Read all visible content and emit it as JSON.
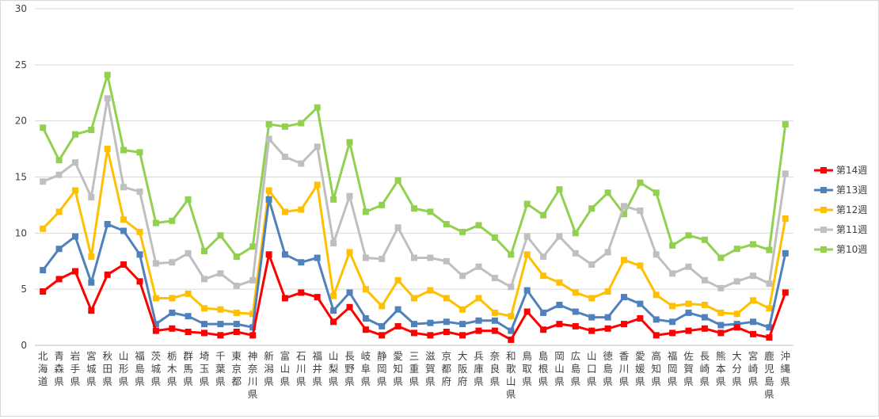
{
  "chart_data": {
    "type": "line",
    "title": "",
    "xlabel": "",
    "ylabel": "",
    "ylim": [
      0,
      30
    ],
    "yticks": [
      0,
      5,
      10,
      15,
      20,
      25,
      30
    ],
    "grid": true,
    "legend_position": "right",
    "categories": [
      "北海道",
      "青森県",
      "岩手県",
      "宮城県",
      "秋田県",
      "山形県",
      "福島県",
      "茨城県",
      "栃木県",
      "群馬県",
      "埼玉県",
      "千葉県",
      "東京都",
      "神奈川県",
      "新潟県",
      "富山県",
      "石川県",
      "福井県",
      "山梨県",
      "長野県",
      "岐阜県",
      "静岡県",
      "愛知県",
      "三重県",
      "滋賀県",
      "京都府",
      "大阪府",
      "兵庫県",
      "奈良県",
      "和歌山県",
      "鳥取県",
      "島根県",
      "岡山県",
      "広島県",
      "山口県",
      "徳島県",
      "香川県",
      "愛媛県",
      "高知県",
      "福岡県",
      "佐賀県",
      "長崎県",
      "熊本県",
      "大分県",
      "宮崎県",
      "鹿児島県",
      "沖縄県"
    ],
    "series": [
      {
        "name": "第10週",
        "color": "#92d050",
        "values": [
          19.4,
          16.5,
          18.8,
          19.2,
          24.1,
          17.4,
          17.2,
          10.9,
          11.1,
          13.0,
          8.4,
          9.8,
          7.9,
          8.8,
          19.7,
          19.5,
          19.8,
          21.2,
          13.0,
          18.1,
          11.9,
          12.5,
          14.7,
          12.2,
          11.9,
          10.8,
          10.1,
          10.7,
          9.6,
          8.1,
          12.6,
          11.6,
          13.9,
          10.0,
          12.2,
          13.6,
          11.7,
          14.5,
          13.6,
          8.9,
          9.8,
          9.4,
          7.8,
          8.6,
          9.0,
          8.5,
          19.7
        ]
      },
      {
        "name": "第11週",
        "color": "#bfbfbf",
        "values": [
          14.6,
          15.2,
          16.3,
          13.2,
          22.0,
          14.1,
          13.7,
          7.3,
          7.4,
          8.2,
          5.9,
          6.4,
          5.3,
          5.8,
          18.4,
          16.8,
          16.2,
          17.7,
          9.1,
          13.3,
          7.8,
          7.7,
          10.5,
          7.8,
          7.8,
          7.5,
          6.2,
          7.0,
          6.0,
          5.2,
          9.7,
          7.9,
          9.7,
          8.2,
          7.2,
          8.3,
          12.4,
          12.0,
          8.1,
          6.4,
          7.0,
          5.8,
          5.1,
          5.7,
          6.2,
          5.5,
          15.3
        ]
      },
      {
        "name": "第12週",
        "color": "#ffc000",
        "values": [
          10.4,
          11.9,
          13.8,
          7.9,
          17.5,
          11.2,
          10.1,
          4.2,
          4.2,
          4.6,
          3.3,
          3.2,
          2.9,
          2.8,
          13.8,
          11.9,
          12.1,
          14.3,
          4.4,
          8.3,
          5.0,
          3.5,
          5.8,
          4.2,
          4.9,
          4.2,
          3.2,
          4.2,
          2.9,
          2.6,
          8.1,
          6.2,
          5.6,
          4.7,
          4.2,
          4.8,
          7.6,
          7.1,
          4.5,
          3.5,
          3.7,
          3.6,
          2.9,
          2.8,
          4.0,
          3.3,
          11.3
        ]
      },
      {
        "name": "第13週",
        "color": "#4f81bd",
        "values": [
          6.7,
          8.6,
          9.7,
          5.6,
          10.8,
          10.2,
          8.1,
          1.9,
          2.9,
          2.6,
          1.9,
          1.9,
          1.9,
          1.6,
          13.0,
          8.1,
          7.4,
          7.8,
          3.1,
          4.7,
          2.4,
          1.7,
          3.2,
          1.9,
          2.0,
          2.1,
          1.9,
          2.2,
          2.2,
          1.3,
          4.9,
          2.9,
          3.6,
          3.0,
          2.5,
          2.5,
          4.3,
          3.7,
          2.3,
          2.1,
          2.9,
          2.5,
          1.8,
          1.9,
          2.1,
          1.6,
          8.2
        ]
      },
      {
        "name": "第14週",
        "color": "#ff0000",
        "values": [
          4.8,
          5.9,
          6.6,
          3.1,
          6.3,
          7.2,
          5.7,
          1.3,
          1.5,
          1.2,
          1.1,
          0.9,
          1.2,
          0.9,
          8.1,
          4.2,
          4.7,
          4.3,
          2.1,
          3.4,
          1.4,
          0.9,
          1.7,
          1.1,
          0.9,
          1.2,
          0.9,
          1.3,
          1.3,
          0.5,
          3.0,
          1.4,
          1.9,
          1.7,
          1.3,
          1.5,
          1.9,
          2.4,
          0.9,
          1.1,
          1.3,
          1.5,
          1.1,
          1.6,
          1.0,
          0.7,
          4.7
        ]
      }
    ],
    "legend_order": [
      "第14週",
      "第13週",
      "第12週",
      "第11週",
      "第10週"
    ]
  }
}
